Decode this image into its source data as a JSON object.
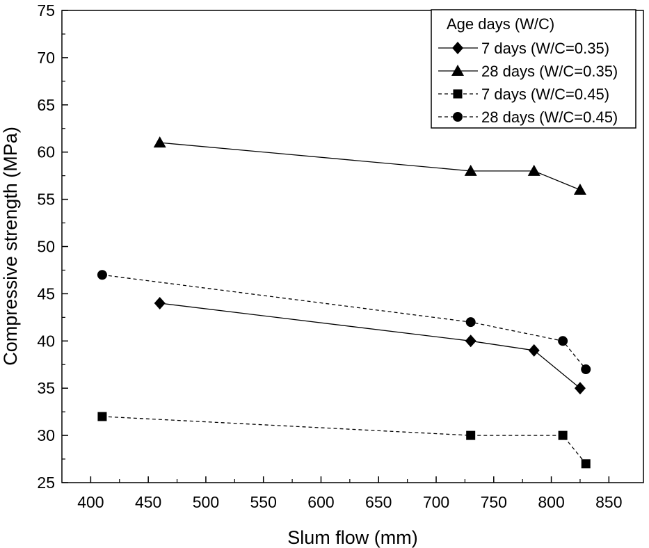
{
  "chart_data": {
    "type": "line",
    "title": "",
    "xlabel": "Slum flow (mm)",
    "ylabel": "Compressive strength (MPa)",
    "xlim": [
      375,
      880
    ],
    "ylim": [
      25,
      75
    ],
    "xticks": [
      400,
      450,
      500,
      550,
      600,
      650,
      700,
      750,
      800,
      850
    ],
    "yticks": [
      25,
      30,
      35,
      40,
      45,
      50,
      55,
      60,
      65,
      70,
      75
    ],
    "grid": false,
    "legend": {
      "title": "Age days (W/C)",
      "position": "top-right"
    },
    "series": [
      {
        "name": "7 days (W/C=0.35)",
        "marker": "diamond",
        "line_style": "solid",
        "x": [
          460,
          730,
          785,
          825
        ],
        "y": [
          44,
          40,
          39,
          35
        ]
      },
      {
        "name": "28 days (W/C=0.35)",
        "marker": "triangle",
        "line_style": "solid",
        "x": [
          460,
          730,
          785,
          825
        ],
        "y": [
          61,
          58,
          58,
          56
        ]
      },
      {
        "name": "7 days (W/C=0.45)",
        "marker": "square",
        "line_style": "dashed",
        "x": [
          410,
          730,
          810,
          830
        ],
        "y": [
          32,
          30,
          30,
          27
        ]
      },
      {
        "name": "28 days (W/C=0.45)",
        "marker": "circle",
        "line_style": "dashed",
        "x": [
          410,
          730,
          810,
          830
        ],
        "y": [
          47,
          42,
          40,
          37
        ]
      }
    ],
    "colors": {
      "ink": "#000000",
      "background": "#ffffff"
    }
  }
}
